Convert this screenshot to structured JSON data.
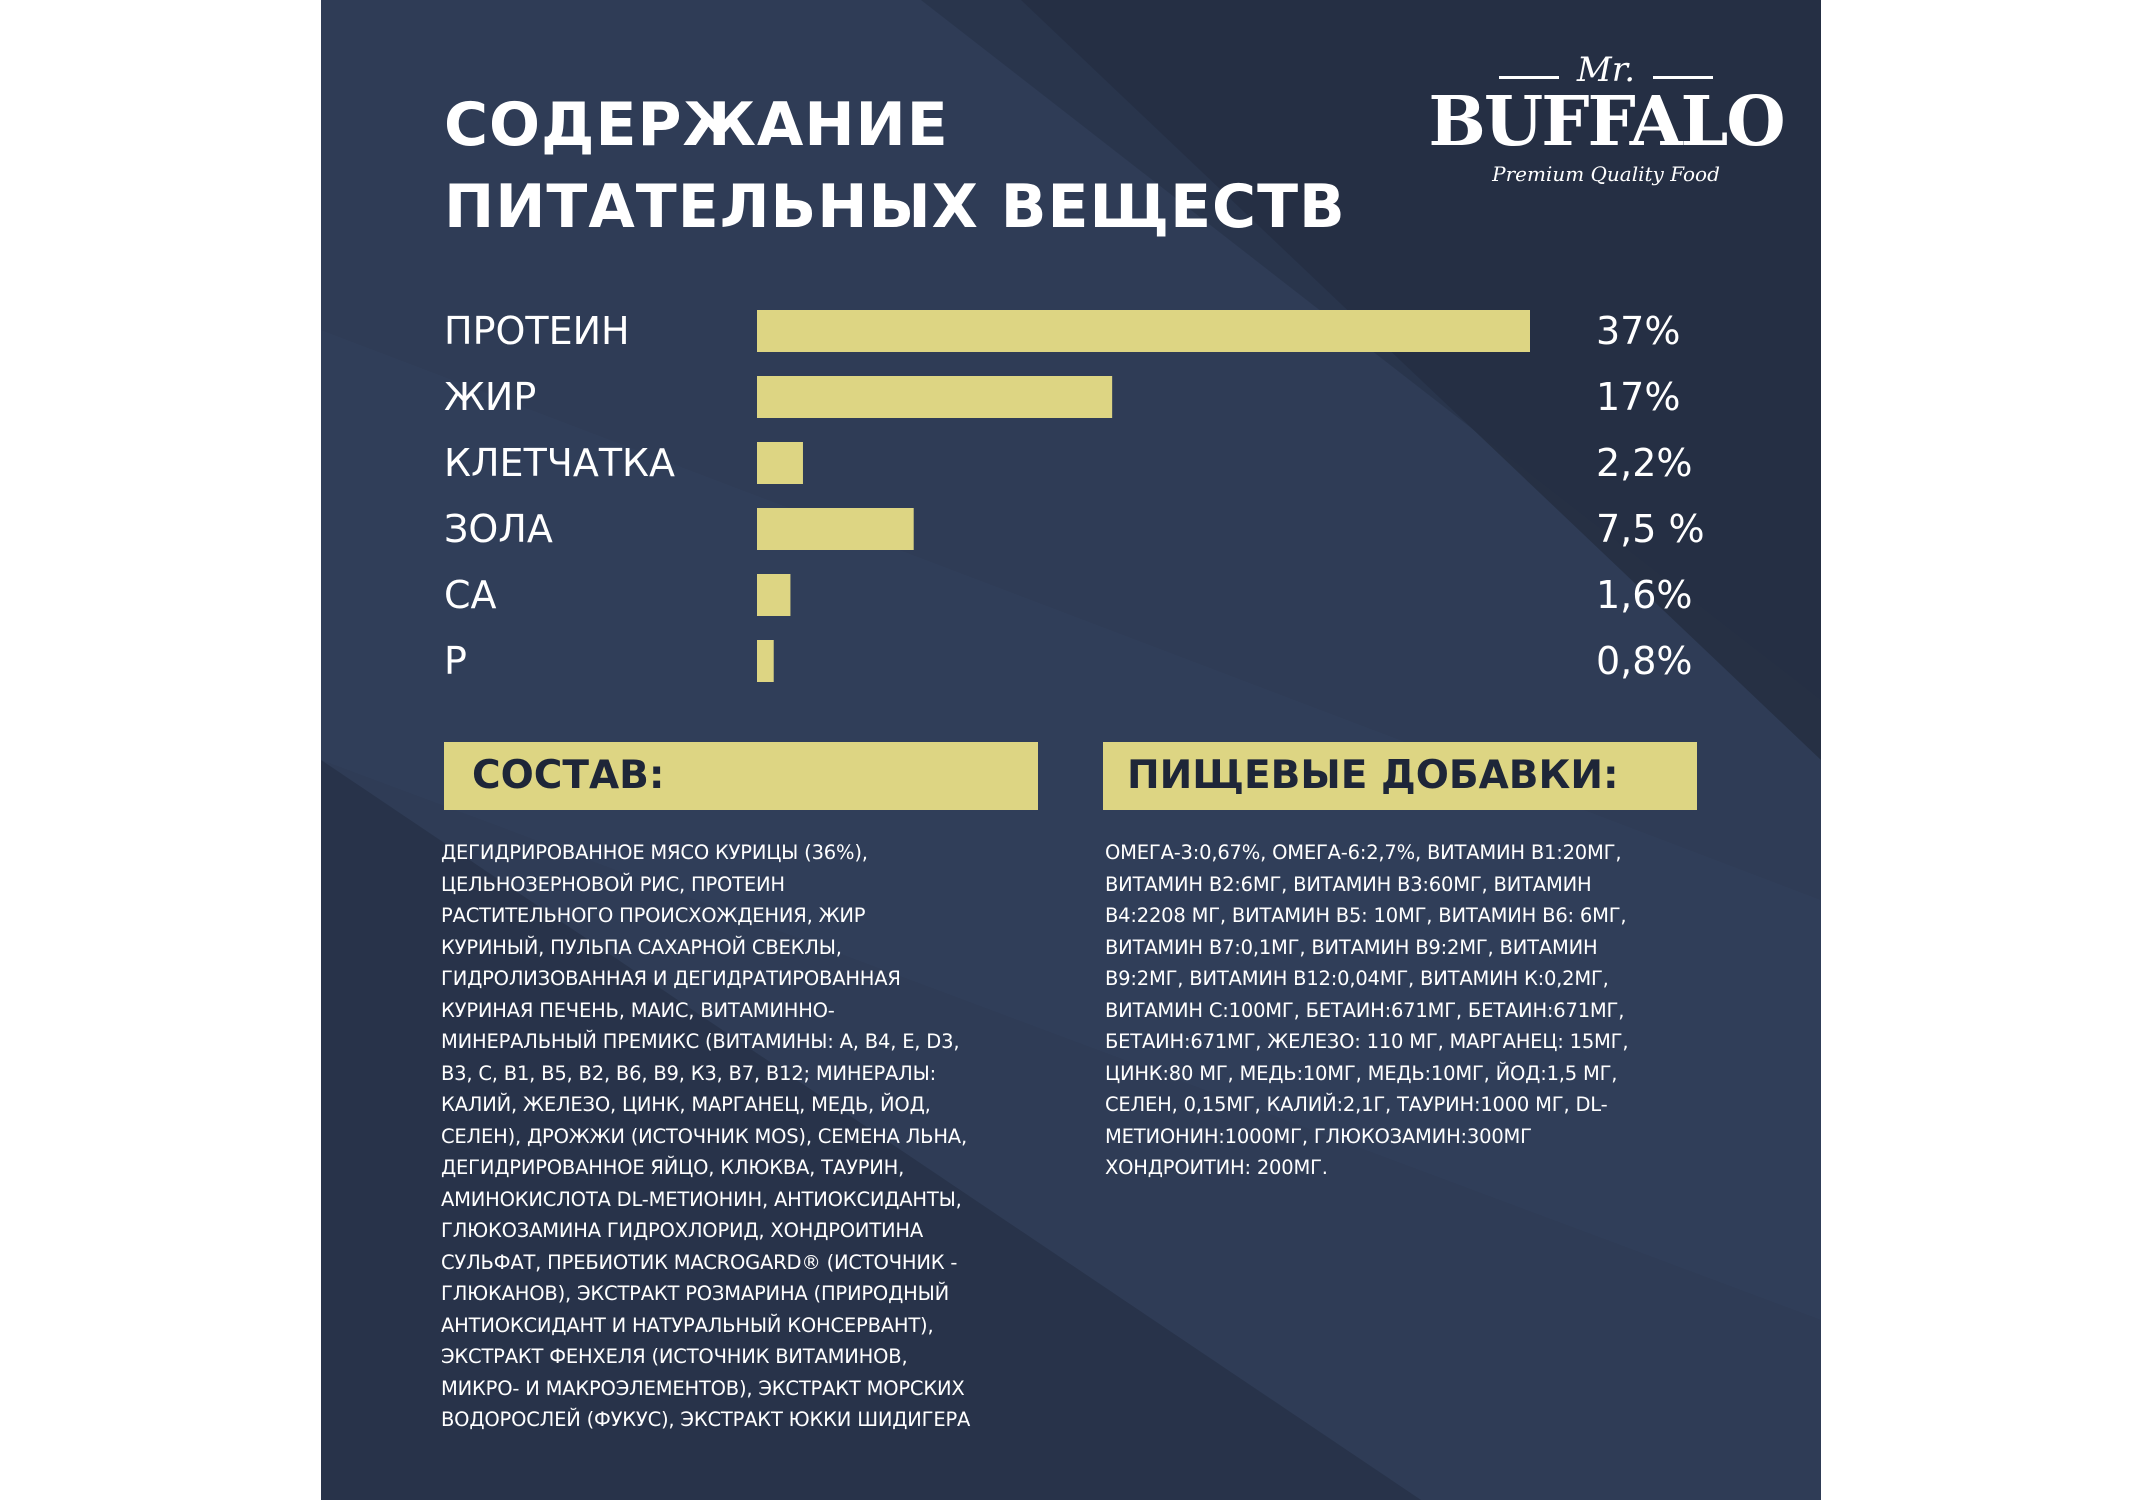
{
  "header": {
    "title_lines": [
      "СОДЕРЖАНИЕ",
      "ПИТАТЕЛЬНЫХ ВЕЩЕСТВ"
    ]
  },
  "logo": {
    "mr": "Mr.",
    "brand": "BUFFALO",
    "tagline": "Premium Quality Food"
  },
  "chart_data": {
    "type": "bar",
    "orientation": "horizontal",
    "categories": [
      "ПРОТЕИН",
      "ЖИР",
      "КЛЕТЧАТКА",
      "ЗОЛА",
      "CA",
      "P"
    ],
    "values": [
      37,
      17,
      2.2,
      7.5,
      1.6,
      0.8
    ],
    "value_labels": [
      "37%",
      "17%",
      "2,2%",
      "7,5 %",
      "1,6%",
      "0,8%"
    ],
    "xlim": [
      0,
      37
    ],
    "unit": "%",
    "bar_color": "#ddd583",
    "grid": false,
    "legend": "none"
  },
  "sections": {
    "composition": {
      "header": "СОСТАВ:",
      "lines": [
        "ДЕГИДРИРОВАННОЕ МЯСО КУРИЦЫ (36%),",
        "ЦЕЛЬНОЗЕРНОВОЙ РИС, ПРОТЕИН",
        "РАСТИТЕЛЬНОГО ПРОИСХОЖДЕНИЯ, ЖИР",
        "КУРИНЫЙ, ПУЛЬПА САХАРНОЙ СВЕКЛЫ,",
        "ГИДРОЛИЗОВАННАЯ И ДЕГИДРАТИРОВАННАЯ",
        "КУРИНАЯ ПЕЧЕНЬ, МАИС, ВИТАМИННО-",
        "МИНЕРАЛЬНЫЙ ПРЕМИКС (ВИТАМИНЫ: А, В4, Е, D3,",
        "В3, С, В1, В5, В2, В6, В9, К3, В7, В12; МИНЕРАЛЫ:",
        "КАЛИЙ, ЖЕЛЕЗО, ЦИНК, МАРГАНЕЦ, МЕДЬ, ЙОД,",
        "СЕЛЕН), ДРОЖЖИ (ИСТОЧНИК MOS), СЕМЕНА ЛЬНА,",
        "ДЕГИДРИРОВАННОЕ ЯЙЦО, КЛЮКВА, ТАУРИН,",
        "АМИНОКИСЛОТА DL-МЕТИОНИН, АНТИОКСИДАНТЫ,",
        "ГЛЮКОЗАМИНА ГИДРОХЛОРИД, ХОНДРОИТИНА",
        "СУЛЬФАТ, ПРЕБИОТИК MACROGARD® (ИСТОЧНИК  -",
        "ГЛЮКАНОВ), ЭКСТРАКТ РОЗМАРИНА (ПРИРОДНЫЙ",
        "АНТИОКСИДАНТ И НАТУРАЛЬНЫЙ КОНСЕРВАНТ),",
        "ЭКСТРАКТ ФЕНХЕЛЯ (ИСТОЧНИК ВИТАМИНОВ,",
        "МИКРО- И МАКРОЭЛЕМЕНТОВ), ЭКСТРАКТ МОРСКИХ",
        "ВОДОРОСЛЕЙ (ФУКУС), ЭКСТРАКТ ЮККИ ШИДИГЕРА"
      ]
    },
    "additives": {
      "header": "ПИЩЕВЫЕ ДОБАВКИ:",
      "lines": [
        "ОМЕГА-3:0,67%, ОМЕГА-6:2,7%, ВИТАМИН В1:20МГ,",
        "ВИТАМИН В2:6МГ, ВИТАМИН В3:60МГ, ВИТАМИН",
        "В4:2208 МГ, ВИТАМИН В5: 10МГ, ВИТАМИН В6: 6МГ,",
        "ВИТАМИН В7:0,1МГ, ВИТАМИН В9:2МГ, ВИТАМИН",
        "В9:2МГ, ВИТАМИН В12:0,04МГ, ВИТАМИН К:0,2МГ,",
        "ВИТАМИН С:100МГ, БЕТАИН:671МГ, БЕТАИН:671МГ,",
        "БЕТАИН:671МГ, ЖЕЛЕЗО: 110 МГ, МАРГАНЕЦ: 15МГ,",
        "ЦИНК:80 МГ, МЕДЬ:10МГ, МЕДЬ:10МГ, ЙОД:1,5 МГ,",
        "СЕЛЕН, 0,15МГ, КАЛИЙ:2,1Г, ТАУРИН:1000 МГ, DL-",
        "МЕТИОНИН:1000МГ, ГЛЮКОЗАМИН:300МГ",
        "ХОНДРОИТИН: 200МГ."
      ]
    }
  }
}
